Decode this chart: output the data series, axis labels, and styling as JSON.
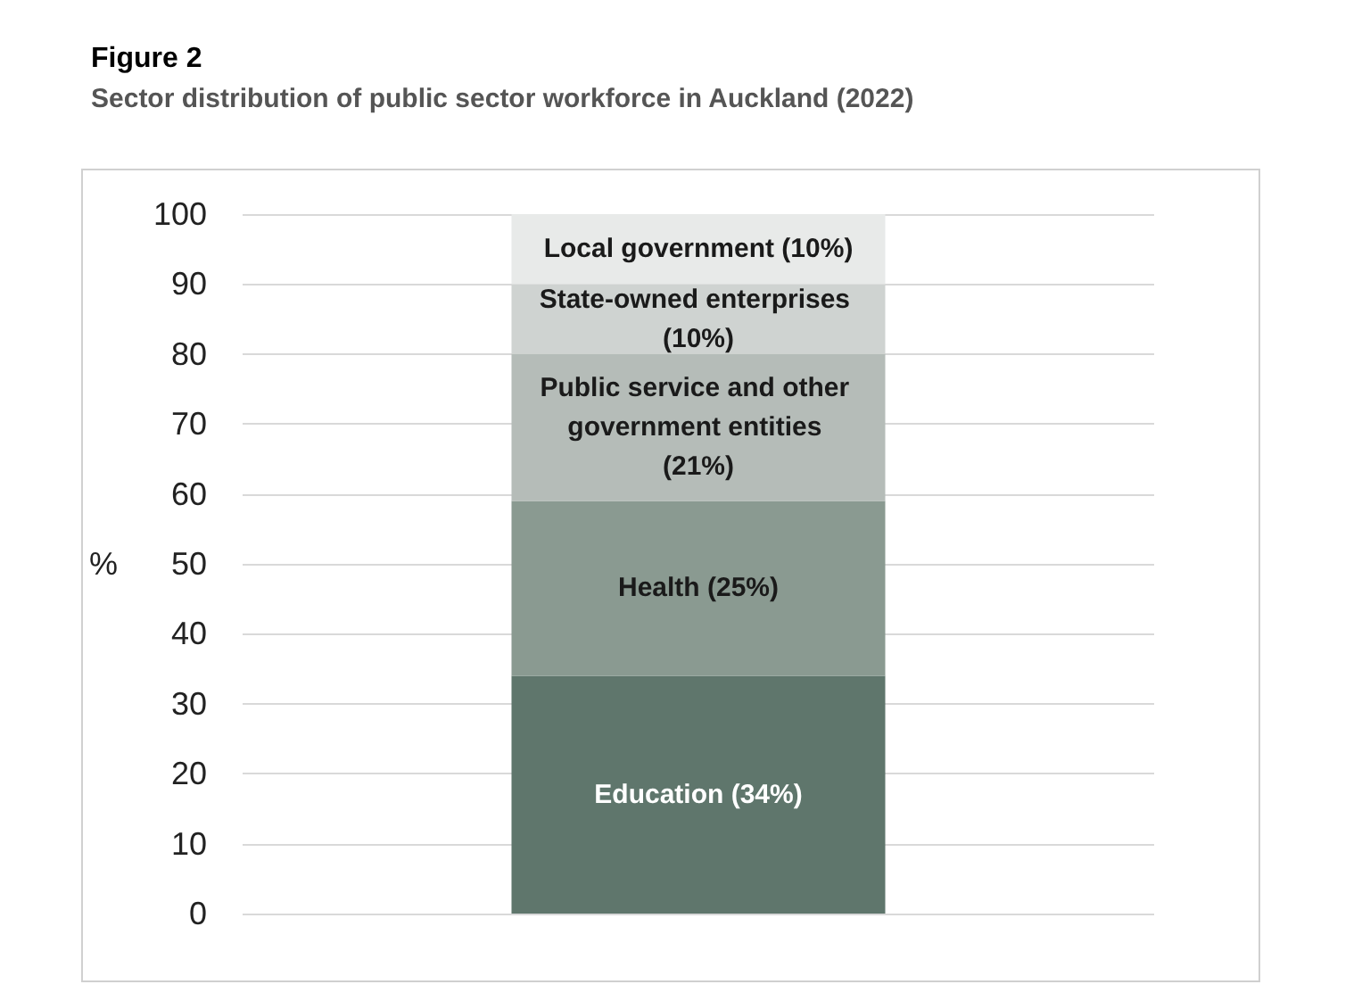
{
  "chart_data": {
    "type": "bar",
    "title": "Figure 2",
    "subtitle": "Sector distribution of public sector workforce in Auckland (2022)",
    "ylabel": "%",
    "categories": [
      null
    ],
    "stacked": true,
    "series": [
      {
        "color": "#5f766c",
        "values": [
          34
        ],
        "value_labels": [
          "Education (34%)"
        ]
      },
      {
        "color": "#8a9a91",
        "values": [
          25
        ],
        "value_labels": [
          "Health (25%)"
        ]
      },
      {
        "color": "#b5bcb8",
        "values": [
          21
        ],
        "value_labels": [
          "Public service and other government entities (21%)"
        ]
      },
      {
        "color": "#cfd3d1",
        "values": [
          10
        ],
        "value_labels": [
          "State-owned enterprises (10%)"
        ]
      },
      {
        "color": "#e8eae9",
        "values": [
          10
        ],
        "value_labels": [
          "Local government (10%)"
        ]
      }
    ],
    "ylim": [
      0,
      100
    ],
    "yticks": [
      0,
      10,
      20,
      30,
      40,
      50,
      60,
      70,
      80,
      90,
      100
    ],
    "grid": "y"
  }
}
